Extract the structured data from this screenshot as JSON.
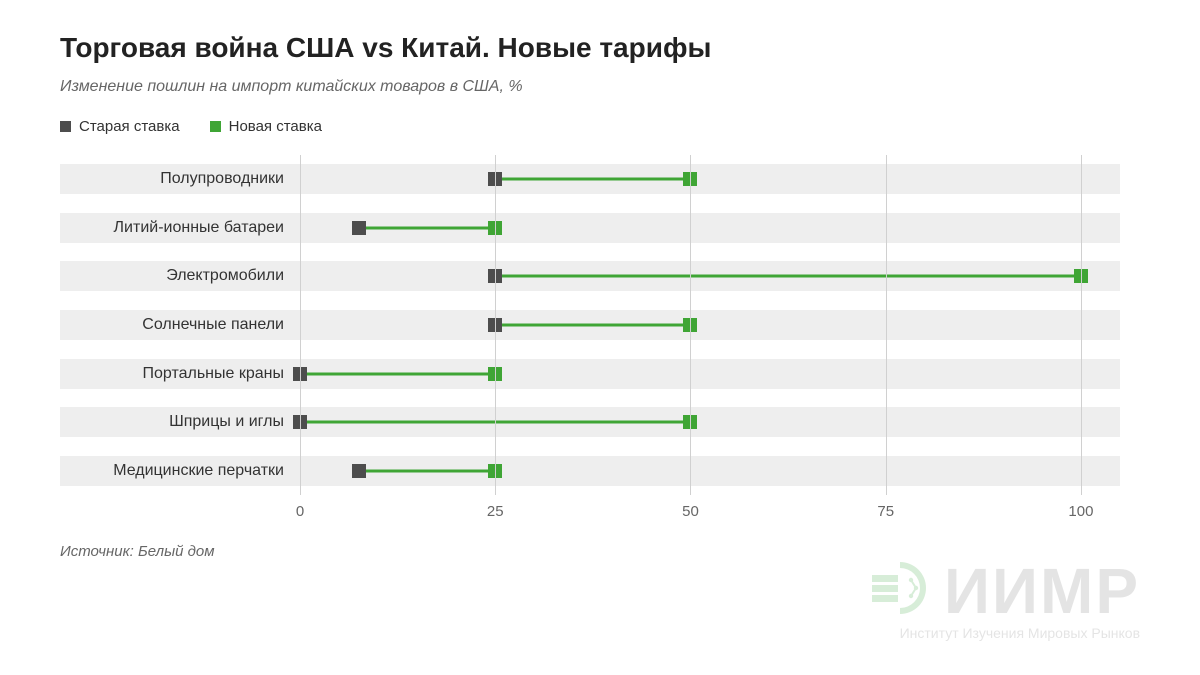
{
  "title": "Торговая война США vs Китай. Новые тарифы",
  "subtitle": "Изменение пошлин на импорт китайских товаров в США, %",
  "legend": {
    "old": {
      "label": "Старая ставка",
      "color": "#4d4d4d"
    },
    "new": {
      "label": "Новая ставка",
      "color": "#3fa535"
    }
  },
  "chart": {
    "type": "dumbbell",
    "xmin": 0,
    "xmax": 105,
    "xticks": [
      0,
      25,
      50,
      75,
      100
    ],
    "row_band_color": "#eeeeee",
    "gridline_color": "#d0d0d0",
    "background_color": "#ffffff",
    "marker_size": 14,
    "connector_width": 3,
    "label_fontsize": 16,
    "axis_fontsize": 15,
    "old_color": "#4d4d4d",
    "new_color": "#3fa535",
    "rows": [
      {
        "label": "Полупроводники",
        "old": 25,
        "new": 50
      },
      {
        "label": "Литий-ионные батареи",
        "old": 7.5,
        "new": 25
      },
      {
        "label": "Электромобили",
        "old": 25,
        "new": 100
      },
      {
        "label": "Солнечные панели",
        "old": 25,
        "new": 50
      },
      {
        "label": "Портальные краны",
        "old": 0,
        "new": 25
      },
      {
        "label": "Шприцы и иглы",
        "old": 0,
        "new": 50
      },
      {
        "label": "Медицинские перчатки",
        "old": 7.5,
        "new": 25
      }
    ]
  },
  "source": "Источник: Белый дом",
  "watermark": {
    "acronym": "ИИМР",
    "full": "Институт Изучения Мировых Рынков",
    "globe_color": "#4caf50"
  }
}
